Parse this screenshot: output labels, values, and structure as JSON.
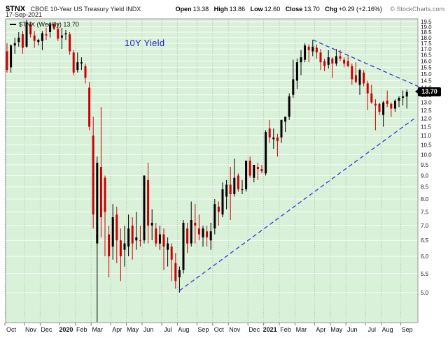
{
  "header": {
    "symbol": "$TNX",
    "description": "CBOE 10-Year US Treasury Yield INDX",
    "date": "17-Sep-2021",
    "quote": {
      "open_label": "Open",
      "open": "13.38",
      "high_label": "High",
      "high": "13.86",
      "low_label": "Low",
      "low": "12.60",
      "close_label": "Close",
      "close": "13.70",
      "chg_label": "Chg",
      "chg": "+0.29 (+2.16%)"
    },
    "copyright": "© StockCharts.com"
  },
  "chart_data": {
    "type": "candlestick",
    "legend": "$TNX (Weekly) 13.70",
    "last_price": 13.7,
    "price_tag": {
      "value": "13.70",
      "bg": "#000000",
      "fg": "#ffffff"
    },
    "annotation": {
      "text": "10Y Yield",
      "bar": 30,
      "value": 17.5,
      "color": "#2222cc"
    },
    "y_axis": {
      "min": 5.0,
      "max": 19.5,
      "step": 0.5,
      "scale": "log",
      "side": "right"
    },
    "colors": {
      "plot_bg": "#d9f0d9",
      "up": "#000000",
      "down": "#cc0000",
      "grid": "rgba(255,255,255,0.85)",
      "month_grid": "rgba(100,110,100,0.35)",
      "trendline": "#3939cf"
    },
    "x_ticks": [
      {
        "label": "Oct",
        "bar": 0
      },
      {
        "label": "Nov",
        "bar": 5
      },
      {
        "label": "Dec",
        "bar": 9
      },
      {
        "label": "2020",
        "bar": 14,
        "bold": true
      },
      {
        "label": "Feb",
        "bar": 18
      },
      {
        "label": "Mar",
        "bar": 22
      },
      {
        "label": "Apr",
        "bar": 27
      },
      {
        "label": "May",
        "bar": 31
      },
      {
        "label": "Jun",
        "bar": 35
      },
      {
        "label": "Jul",
        "bar": 40
      },
      {
        "label": "Aug",
        "bar": 44
      },
      {
        "label": "Sep",
        "bar": 49
      },
      {
        "label": "Oct",
        "bar": 53
      },
      {
        "label": "Nov",
        "bar": 57
      },
      {
        "label": "Dec",
        "bar": 62
      },
      {
        "label": "2021",
        "bar": 66,
        "bold": true
      },
      {
        "label": "Feb",
        "bar": 70
      },
      {
        "label": "Mar",
        "bar": 74
      },
      {
        "label": "Apr",
        "bar": 79
      },
      {
        "label": "May",
        "bar": 83
      },
      {
        "label": "Jun",
        "bar": 87
      },
      {
        "label": "Jul",
        "bar": 92
      },
      {
        "label": "Aug",
        "bar": 96
      },
      {
        "label": "Sep",
        "bar": 101
      }
    ],
    "trendlines": [
      {
        "from_bar": 44,
        "from_value": 5.05,
        "to_bar": 104,
        "to_value": 12.0
      },
      {
        "from_bar": 78,
        "from_value": 17.8,
        "to_bar": 106,
        "to_value": 13.95
      }
    ],
    "bars": [
      [
        16.8,
        17.5,
        15.1,
        15.3
      ],
      [
        15.5,
        17.4,
        15.1,
        17.3
      ],
      [
        17.3,
        18.0,
        16.6,
        17.5
      ],
      [
        17.6,
        18.5,
        17.2,
        18.0
      ],
      [
        18.3,
        18.6,
        16.6,
        17.1
      ],
      [
        17.2,
        19.7,
        17.1,
        19.4
      ],
      [
        19.3,
        19.5,
        18.0,
        18.3
      ],
      [
        18.2,
        18.6,
        17.1,
        17.7
      ],
      [
        17.6,
        17.9,
        17.3,
        17.8
      ],
      [
        17.7,
        18.6,
        16.9,
        18.4
      ],
      [
        18.3,
        18.9,
        17.8,
        18.2
      ],
      [
        18.5,
        19.5,
        18.0,
        19.2
      ],
      [
        19.3,
        19.5,
        18.7,
        18.8
      ],
      [
        18.8,
        19.4,
        17.7,
        17.9
      ],
      [
        18.0,
        18.9,
        17.0,
        18.2
      ],
      [
        18.4,
        18.7,
        17.8,
        18.3
      ],
      [
        18.3,
        18.5,
        16.5,
        16.8
      ],
      [
        16.7,
        16.9,
        14.9,
        15.1
      ],
      [
        15.3,
        16.7,
        15.1,
        15.9
      ],
      [
        15.8,
        16.3,
        15.3,
        15.9
      ],
      [
        15.6,
        15.8,
        14.3,
        14.7
      ],
      [
        14.0,
        14.4,
        11.3,
        11.5
      ],
      [
        11.0,
        12.1,
        6.9,
        7.4
      ],
      [
        6.4,
        9.9,
        4.0,
        9.6
      ],
      [
        7.3,
        12.7,
        6.6,
        9.4
      ],
      [
        8.9,
        9.0,
        6.0,
        7.5
      ],
      [
        6.7,
        7.0,
        5.4,
        6.0
      ],
      [
        6.3,
        7.8,
        5.9,
        7.3
      ],
      [
        7.4,
        7.7,
        5.8,
        6.5
      ],
      [
        6.5,
        6.9,
        5.3,
        6.0
      ],
      [
        6.2,
        7.0,
        5.7,
        6.4
      ],
      [
        6.3,
        7.4,
        6.0,
        6.9
      ],
      [
        7.0,
        7.3,
        5.9,
        6.4
      ],
      [
        6.5,
        7.5,
        6.2,
        6.6
      ],
      [
        6.5,
        7.0,
        6.3,
        6.5
      ],
      [
        6.5,
        9.0,
        6.4,
        9.0
      ],
      [
        8.8,
        9.6,
        6.4,
        7.0
      ],
      [
        7.1,
        7.6,
        6.5,
        7.0
      ],
      [
        6.9,
        7.1,
        6.3,
        6.4
      ],
      [
        6.4,
        7.0,
        6.2,
        6.7
      ],
      [
        6.7,
        6.9,
        5.6,
        6.3
      ],
      [
        6.2,
        6.6,
        5.7,
        6.4
      ],
      [
        6.3,
        6.4,
        5.3,
        5.9
      ],
      [
        5.8,
        6.1,
        5.1,
        5.3
      ],
      [
        5.4,
        5.7,
        5.0,
        5.6
      ],
      [
        5.6,
        7.2,
        5.5,
        7.1
      ],
      [
        6.9,
        7.1,
        6.1,
        6.4
      ],
      [
        6.4,
        7.9,
        6.3,
        7.2
      ],
      [
        7.1,
        7.8,
        6.4,
        7.0
      ],
      [
        6.9,
        7.4,
        6.5,
        6.7
      ],
      [
        6.6,
        7.0,
        6.3,
        6.9
      ],
      [
        6.8,
        7.0,
        6.3,
        6.6
      ],
      [
        6.5,
        7.1,
        6.2,
        6.8
      ],
      [
        6.9,
        8.0,
        6.7,
        7.8
      ],
      [
        7.7,
        7.9,
        7.0,
        7.5
      ],
      [
        7.4,
        8.7,
        7.3,
        8.4
      ],
      [
        8.1,
        8.8,
        7.6,
        8.6
      ],
      [
        8.6,
        9.4,
        7.2,
        8.2
      ],
      [
        8.2,
        9.8,
        8.1,
        8.9
      ],
      [
        9.0,
        9.1,
        8.3,
        8.4
      ],
      [
        8.4,
        8.8,
        8.2,
        8.4
      ],
      [
        8.4,
        9.7,
        8.3,
        9.7
      ],
      [
        9.7,
        9.9,
        8.9,
        9.0
      ],
      [
        8.9,
        9.5,
        8.7,
        9.5
      ],
      [
        9.4,
        9.6,
        8.8,
        9.3
      ],
      [
        9.3,
        9.5,
        9.1,
        9.2
      ],
      [
        9.1,
        11.3,
        9.0,
        11.2
      ],
      [
        11.4,
        11.9,
        10.6,
        10.9
      ],
      [
        10.8,
        11.4,
        10.3,
        10.9
      ],
      [
        10.9,
        11.1,
        9.9,
        10.7
      ],
      [
        10.9,
        11.9,
        10.6,
        11.9
      ],
      [
        11.8,
        12.1,
        11.2,
        12.1
      ],
      [
        12.1,
        13.6,
        11.9,
        13.4
      ],
      [
        13.5,
        16.1,
        13.3,
        14.6
      ],
      [
        14.5,
        16.2,
        13.9,
        15.9
      ],
      [
        15.9,
        16.9,
        14.9,
        16.3
      ],
      [
        16.1,
        17.5,
        15.9,
        17.3
      ],
      [
        17.2,
        17.4,
        15.9,
        16.9
      ],
      [
        16.8,
        17.8,
        16.4,
        17.2
      ],
      [
        17.1,
        17.4,
        16.2,
        16.7
      ],
      [
        16.7,
        17.0,
        15.3,
        15.9
      ],
      [
        16.0,
        16.2,
        15.2,
        15.6
      ],
      [
        15.7,
        16.9,
        15.4,
        16.3
      ],
      [
        16.2,
        16.3,
        14.7,
        15.8
      ],
      [
        15.8,
        17.0,
        15.6,
        16.4
      ],
      [
        16.4,
        16.9,
        16.0,
        16.2
      ],
      [
        16.1,
        16.3,
        15.5,
        15.8
      ],
      [
        16.0,
        16.4,
        15.5,
        15.6
      ],
      [
        15.6,
        15.8,
        14.2,
        14.6
      ],
      [
        14.9,
        15.9,
        14.3,
        14.4
      ],
      [
        14.2,
        15.4,
        13.5,
        15.3
      ],
      [
        15.1,
        15.3,
        14.1,
        14.3
      ],
      [
        14.3,
        14.5,
        12.5,
        13.6
      ],
      [
        13.6,
        14.2,
        12.9,
        13.0
      ],
      [
        12.8,
        13.2,
        11.3,
        12.9
      ],
      [
        12.9,
        13.0,
        12.2,
        12.4
      ],
      [
        12.2,
        13.1,
        11.5,
        13.0
      ],
      [
        13.1,
        13.8,
        12.7,
        12.9
      ],
      [
        12.9,
        13.0,
        12.1,
        12.6
      ],
      [
        12.6,
        13.2,
        12.4,
        13.1
      ],
      [
        13.1,
        13.4,
        12.7,
        13.3
      ],
      [
        13.3,
        13.8,
        12.8,
        13.4
      ],
      [
        13.38,
        13.86,
        12.6,
        13.7
      ]
    ]
  }
}
